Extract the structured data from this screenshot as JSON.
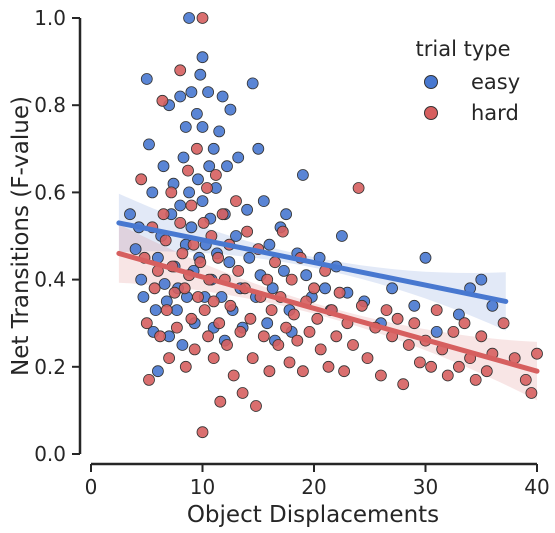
{
  "chart_data": {
    "type": "scatter",
    "xlabel": "Object Displacements",
    "ylabel": "Net Transitions (F-value)",
    "xlim": [
      0,
      40
    ],
    "ylim": [
      0,
      1
    ],
    "x_ticks": [
      "0",
      "10",
      "20",
      "30",
      "40"
    ],
    "y_ticks": [
      "0.0",
      "0.2",
      "0.4",
      "0.6",
      "0.8",
      "1.0"
    ],
    "grid": false,
    "legend": {
      "title": "trial type",
      "placement": "top-right"
    },
    "series": [
      {
        "name": "easy",
        "color": "#4878d0",
        "regression": {
          "x_range": [
            2.5,
            37.2
          ],
          "y_range": [
            0.53,
            0.35
          ]
        },
        "points": [
          [
            3.5,
            0.55
          ],
          [
            4.0,
            0.47
          ],
          [
            4.3,
            0.52
          ],
          [
            4.5,
            0.4
          ],
          [
            4.7,
            0.36
          ],
          [
            5.0,
            0.86
          ],
          [
            5.2,
            0.71
          ],
          [
            5.5,
            0.6
          ],
          [
            5.6,
            0.28
          ],
          [
            5.8,
            0.33
          ],
          [
            6.0,
            0.19
          ],
          [
            6.0,
            0.45
          ],
          [
            6.3,
            0.5
          ],
          [
            6.5,
            0.66
          ],
          [
            6.6,
            0.39
          ],
          [
            6.8,
            0.35
          ],
          [
            7.0,
            0.8
          ],
          [
            7.0,
            0.27
          ],
          [
            7.2,
            0.55
          ],
          [
            7.4,
            0.62
          ],
          [
            7.5,
            0.43
          ],
          [
            7.7,
            0.33
          ],
          [
            7.8,
            0.38
          ],
          [
            8.0,
            0.82
          ],
          [
            8.0,
            0.57
          ],
          [
            8.2,
            0.25
          ],
          [
            8.3,
            0.68
          ],
          [
            8.5,
            0.75
          ],
          [
            8.5,
            0.48
          ],
          [
            8.6,
            0.36
          ],
          [
            8.8,
            0.6
          ],
          [
            8.8,
            1.0
          ],
          [
            9.0,
            0.83
          ],
          [
            9.0,
            0.52
          ],
          [
            9.2,
            0.42
          ],
          [
            9.3,
            0.3
          ],
          [
            9.5,
            0.78
          ],
          [
            9.6,
            0.63
          ],
          [
            9.7,
            0.45
          ],
          [
            9.8,
            0.87
          ],
          [
            10.0,
            0.91
          ],
          [
            10.0,
            0.75
          ],
          [
            10.0,
            0.58
          ],
          [
            10.2,
            0.36
          ],
          [
            10.3,
            0.48
          ],
          [
            10.5,
            0.83
          ],
          [
            10.6,
            0.66
          ],
          [
            10.7,
            0.54
          ],
          [
            10.8,
            0.4
          ],
          [
            11.0,
            0.7
          ],
          [
            11.0,
            0.29
          ],
          [
            11.2,
            0.61
          ],
          [
            11.3,
            0.46
          ],
          [
            11.5,
            0.74
          ],
          [
            11.7,
            0.36
          ],
          [
            11.8,
            0.82
          ],
          [
            12.0,
            0.55
          ],
          [
            12.0,
            0.26
          ],
          [
            12.2,
            0.66
          ],
          [
            12.4,
            0.44
          ],
          [
            12.5,
            0.79
          ],
          [
            12.7,
            0.33
          ],
          [
            13.0,
            0.5
          ],
          [
            13.2,
            0.68
          ],
          [
            13.4,
            0.38
          ],
          [
            13.6,
            0.29
          ],
          [
            14.0,
            0.56
          ],
          [
            14.2,
            0.45
          ],
          [
            14.5,
            0.85
          ],
          [
            14.8,
            0.36
          ],
          [
            15.0,
            0.7
          ],
          [
            15.2,
            0.41
          ],
          [
            15.5,
            0.58
          ],
          [
            15.8,
            0.3
          ],
          [
            16.0,
            0.48
          ],
          [
            16.3,
            0.38
          ],
          [
            16.5,
            0.26
          ],
          [
            17.0,
            0.52
          ],
          [
            17.3,
            0.42
          ],
          [
            17.5,
            0.55
          ],
          [
            17.8,
            0.33
          ],
          [
            18.0,
            0.28
          ],
          [
            18.5,
            0.46
          ],
          [
            19.0,
            0.64
          ],
          [
            19.3,
            0.41
          ],
          [
            19.8,
            0.36
          ],
          [
            20.5,
            0.45
          ],
          [
            21.0,
            0.38
          ],
          [
            21.5,
            0.33
          ],
          [
            22.0,
            0.43
          ],
          [
            22.5,
            0.5
          ],
          [
            23.0,
            0.37
          ],
          [
            24.5,
            0.35
          ],
          [
            26.0,
            0.3
          ],
          [
            27.0,
            0.38
          ],
          [
            29.0,
            0.34
          ],
          [
            30.0,
            0.45
          ],
          [
            31.0,
            0.28
          ],
          [
            33.0,
            0.32
          ],
          [
            34.0,
            0.38
          ],
          [
            35.0,
            0.4
          ],
          [
            36.0,
            0.34
          ]
        ]
      },
      {
        "name": "hard",
        "color": "#d65f5f",
        "regression": {
          "x_range": [
            2.5,
            40.0
          ],
          "y_range": [
            0.46,
            0.19
          ]
        },
        "points": [
          [
            4.5,
            0.63
          ],
          [
            4.8,
            0.45
          ],
          [
            5.0,
            0.3
          ],
          [
            5.2,
            0.17
          ],
          [
            5.5,
            0.52
          ],
          [
            5.7,
            0.38
          ],
          [
            6.0,
            0.42
          ],
          [
            6.2,
            0.27
          ],
          [
            6.4,
            0.81
          ],
          [
            6.5,
            0.55
          ],
          [
            6.7,
            0.49
          ],
          [
            6.8,
            0.33
          ],
          [
            7.0,
            0.22
          ],
          [
            7.2,
            0.6
          ],
          [
            7.3,
            0.43
          ],
          [
            7.5,
            0.37
          ],
          [
            7.7,
            0.29
          ],
          [
            8.0,
            0.88
          ],
          [
            8.0,
            0.53
          ],
          [
            8.2,
            0.46
          ],
          [
            8.4,
            0.38
          ],
          [
            8.5,
            0.2
          ],
          [
            8.7,
            0.65
          ],
          [
            8.8,
            0.41
          ],
          [
            9.0,
            0.57
          ],
          [
            9.0,
            0.31
          ],
          [
            9.2,
            0.48
          ],
          [
            9.3,
            0.24
          ],
          [
            9.5,
            0.7
          ],
          [
            9.6,
            0.36
          ],
          [
            9.8,
            0.44
          ],
          [
            10.0,
            1.0
          ],
          [
            10.0,
            0.05
          ],
          [
            10.1,
            0.53
          ],
          [
            10.2,
            0.33
          ],
          [
            10.4,
            0.61
          ],
          [
            10.5,
            0.27
          ],
          [
            10.6,
            0.4
          ],
          [
            10.8,
            0.5
          ],
          [
            11.0,
            0.35
          ],
          [
            11.0,
            0.22
          ],
          [
            11.2,
            0.64
          ],
          [
            11.4,
            0.45
          ],
          [
            11.5,
            0.3
          ],
          [
            11.6,
            0.12
          ],
          [
            11.8,
            0.55
          ],
          [
            12.0,
            0.4
          ],
          [
            12.2,
            0.25
          ],
          [
            12.4,
            0.48
          ],
          [
            12.5,
            0.34
          ],
          [
            12.8,
            0.18
          ],
          [
            13.0,
            0.58
          ],
          [
            13.2,
            0.42
          ],
          [
            13.4,
            0.28
          ],
          [
            13.6,
            0.14
          ],
          [
            13.8,
            0.38
          ],
          [
            14.0,
            0.51
          ],
          [
            14.3,
            0.31
          ],
          [
            14.5,
            0.22
          ],
          [
            14.8,
            0.11
          ],
          [
            15.0,
            0.47
          ],
          [
            15.2,
            0.36
          ],
          [
            15.5,
            0.27
          ],
          [
            15.8,
            0.4
          ],
          [
            16.0,
            0.19
          ],
          [
            16.2,
            0.33
          ],
          [
            16.5,
            0.44
          ],
          [
            16.8,
            0.25
          ],
          [
            17.0,
            0.36
          ],
          [
            17.2,
            0.51
          ],
          [
            17.5,
            0.29
          ],
          [
            17.8,
            0.21
          ],
          [
            18.0,
            0.4
          ],
          [
            18.2,
            0.32
          ],
          [
            18.5,
            0.26
          ],
          [
            18.8,
            0.45
          ],
          [
            19.0,
            0.19
          ],
          [
            19.3,
            0.35
          ],
          [
            19.6,
            0.28
          ],
          [
            20.0,
            0.38
          ],
          [
            20.3,
            0.31
          ],
          [
            20.6,
            0.24
          ],
          [
            21.0,
            0.42
          ],
          [
            21.3,
            0.2
          ],
          [
            21.6,
            0.33
          ],
          [
            22.0,
            0.27
          ],
          [
            22.3,
            0.37
          ],
          [
            22.7,
            0.19
          ],
          [
            23.0,
            0.3
          ],
          [
            23.5,
            0.25
          ],
          [
            24.0,
            0.61
          ],
          [
            24.3,
            0.34
          ],
          [
            24.8,
            0.22
          ],
          [
            25.5,
            0.29
          ],
          [
            26.0,
            0.18
          ],
          [
            26.5,
            0.33
          ],
          [
            27.0,
            0.27
          ],
          [
            27.5,
            0.31
          ],
          [
            28.0,
            0.16
          ],
          [
            28.5,
            0.25
          ],
          [
            29.0,
            0.3
          ],
          [
            29.5,
            0.21
          ],
          [
            30.0,
            0.26
          ],
          [
            30.5,
            0.2
          ],
          [
            31.0,
            0.33
          ],
          [
            31.5,
            0.24
          ],
          [
            32.0,
            0.18
          ],
          [
            32.5,
            0.28
          ],
          [
            33.0,
            0.2
          ],
          [
            33.5,
            0.3
          ],
          [
            34.0,
            0.22
          ],
          [
            34.5,
            0.17
          ],
          [
            35.0,
            0.27
          ],
          [
            35.5,
            0.19
          ],
          [
            36.0,
            0.23
          ],
          [
            37.0,
            0.3
          ],
          [
            38.0,
            0.22
          ],
          [
            39.0,
            0.17
          ],
          [
            39.5,
            0.14
          ],
          [
            40.0,
            0.23
          ]
        ]
      }
    ]
  }
}
